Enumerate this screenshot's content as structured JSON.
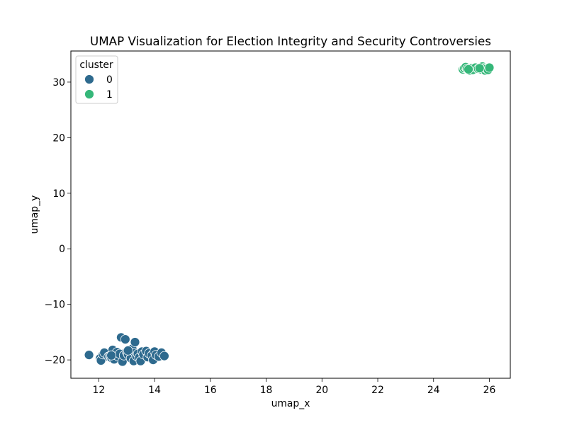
{
  "chart_data": {
    "type": "scatter",
    "title": "UMAP Visualization for Election Integrity and Security Controversies",
    "xlabel": "umap_x",
    "ylabel": "umap_y",
    "xlim": [
      11.0,
      26.75
    ],
    "ylim": [
      -23.3,
      35.6
    ],
    "x_ticks": [
      12,
      14,
      16,
      18,
      20,
      22,
      24,
      26
    ],
    "y_ticks": [
      -20,
      -10,
      0,
      10,
      20,
      30
    ],
    "y_tick_labels": [
      "−20",
      "−10",
      "0",
      "10",
      "20",
      "30"
    ],
    "grid": false,
    "legend": {
      "title": "cluster",
      "placement": "top-left",
      "entries": [
        {
          "label": "0",
          "color": "#2e6a8e"
        },
        {
          "label": "1",
          "color": "#35b779"
        }
      ]
    },
    "series": [
      {
        "name": "0",
        "color": "#2e6a8e",
        "points": [
          [
            11.65,
            -19.1
          ],
          [
            12.05,
            -19.7
          ],
          [
            12.08,
            -20.1
          ],
          [
            12.15,
            -19.0
          ],
          [
            12.2,
            -18.7
          ],
          [
            12.35,
            -19.4
          ],
          [
            12.4,
            -19.3
          ],
          [
            12.45,
            -19.6
          ],
          [
            12.5,
            -18.2
          ],
          [
            12.55,
            -19.9
          ],
          [
            12.6,
            -19.1
          ],
          [
            12.65,
            -18.6
          ],
          [
            12.7,
            -19.4
          ],
          [
            12.75,
            -18.9
          ],
          [
            12.8,
            -15.95
          ],
          [
            12.85,
            -20.3
          ],
          [
            12.9,
            -19.2
          ],
          [
            12.95,
            -16.3
          ],
          [
            13.0,
            -18.5
          ],
          [
            13.05,
            -19.0
          ],
          [
            13.1,
            -18.3
          ],
          [
            13.15,
            -19.7
          ],
          [
            13.2,
            -18.0
          ],
          [
            13.25,
            -20.2
          ],
          [
            13.3,
            -16.8
          ],
          [
            13.3,
            -18.7
          ],
          [
            13.35,
            -19.3
          ],
          [
            13.4,
            -18.9
          ],
          [
            13.45,
            -19.6
          ],
          [
            13.5,
            -20.2
          ],
          [
            13.55,
            -18.5
          ],
          [
            13.6,
            -19.0
          ],
          [
            13.7,
            -18.4
          ],
          [
            13.75,
            -19.5
          ],
          [
            13.8,
            -18.8
          ],
          [
            13.9,
            -19.2
          ],
          [
            13.95,
            -20.0
          ],
          [
            14.0,
            -18.5
          ],
          [
            14.05,
            -19.1
          ],
          [
            14.15,
            -19.4
          ],
          [
            14.25,
            -18.7
          ],
          [
            14.35,
            -19.3
          ],
          [
            12.45,
            -19.2
          ],
          [
            13.05,
            -18.3
          ]
        ]
      },
      {
        "name": "1",
        "color": "#35b779",
        "points": [
          [
            25.05,
            32.3
          ],
          [
            25.1,
            32.5
          ],
          [
            25.15,
            32.7
          ],
          [
            25.2,
            32.4
          ],
          [
            25.3,
            32.1
          ],
          [
            25.35,
            32.5
          ],
          [
            25.4,
            32.2
          ],
          [
            25.5,
            32.6
          ],
          [
            25.6,
            32.4
          ],
          [
            25.7,
            32.3
          ],
          [
            25.75,
            32.8
          ],
          [
            25.8,
            32.5
          ],
          [
            25.85,
            32.1
          ],
          [
            25.9,
            32.4
          ],
          [
            25.95,
            32.2
          ],
          [
            26.0,
            32.6
          ],
          [
            25.25,
            32.3
          ],
          [
            25.65,
            32.5
          ]
        ]
      }
    ]
  }
}
